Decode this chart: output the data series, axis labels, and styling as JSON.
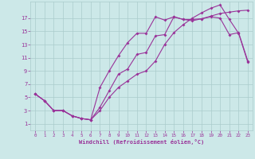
{
  "xlabel": "Windchill (Refroidissement éolien,°C)",
  "bg_color": "#cce8e8",
  "grid_color": "#aacccc",
  "line_color": "#993399",
  "line1_x": [
    0,
    1,
    2,
    3,
    4,
    5,
    6,
    7,
    8,
    9,
    10,
    11,
    12,
    13,
    14,
    15,
    16,
    17,
    18,
    19,
    20,
    21,
    22,
    23
  ],
  "line1_y": [
    5.5,
    4.5,
    3.0,
    3.0,
    2.2,
    1.8,
    1.6,
    3.5,
    6.0,
    8.5,
    9.3,
    11.5,
    11.8,
    14.3,
    14.5,
    17.2,
    16.8,
    16.6,
    16.9,
    17.3,
    17.7,
    17.9,
    18.1,
    18.2
  ],
  "line2_x": [
    0,
    1,
    2,
    3,
    4,
    5,
    6,
    7,
    8,
    9,
    10,
    11,
    12,
    13,
    14,
    15,
    16,
    17,
    18,
    19,
    20,
    21,
    22,
    23
  ],
  "line2_y": [
    5.5,
    4.5,
    3.0,
    3.0,
    2.2,
    1.8,
    1.6,
    6.5,
    9.0,
    11.3,
    13.3,
    14.7,
    14.7,
    17.2,
    16.7,
    17.2,
    16.8,
    16.8,
    16.9,
    17.2,
    17.0,
    14.5,
    14.8,
    10.5
  ],
  "line3_x": [
    0,
    1,
    2,
    3,
    4,
    5,
    6,
    7,
    8,
    9,
    10,
    11,
    12,
    13,
    14,
    15,
    16,
    17,
    18,
    19,
    20,
    21,
    22,
    23
  ],
  "line3_y": [
    5.5,
    4.5,
    3.0,
    3.0,
    2.2,
    1.8,
    1.6,
    3.0,
    5.0,
    6.5,
    7.5,
    8.5,
    9.0,
    10.5,
    13.0,
    14.8,
    16.0,
    17.0,
    17.8,
    18.5,
    19.0,
    16.8,
    14.7,
    10.3
  ],
  "xlim": [
    -0.5,
    23.5
  ],
  "ylim": [
    0,
    19.5
  ],
  "xticks": [
    0,
    1,
    2,
    3,
    4,
    5,
    6,
    7,
    8,
    9,
    10,
    11,
    12,
    13,
    14,
    15,
    16,
    17,
    18,
    19,
    20,
    21,
    22,
    23
  ],
  "yticks": [
    1,
    3,
    5,
    7,
    9,
    11,
    13,
    15,
    17
  ]
}
